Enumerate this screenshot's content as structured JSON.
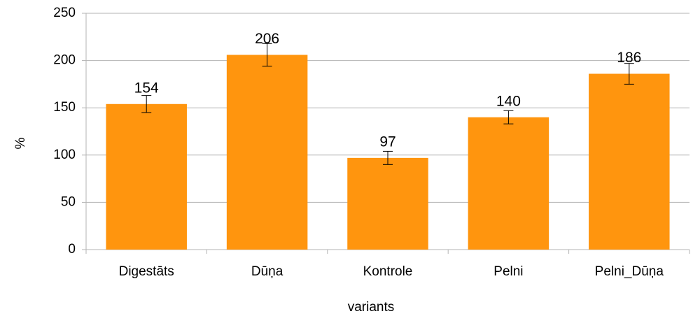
{
  "chart_data": {
    "type": "bar",
    "categories": [
      "Digestāts",
      "Dūņa",
      "Kontrole",
      "Pelni",
      "Pelni_Dūņa"
    ],
    "values": [
      154,
      206,
      97,
      140,
      186
    ],
    "errors": [
      9,
      12,
      7,
      7,
      11
    ],
    "color": "#ff950e",
    "ylim": [
      0,
      250
    ],
    "yticks": [
      0,
      50,
      100,
      150,
      200,
      250
    ],
    "grid": true,
    "xlabel": "variants",
    "ylabel": "%"
  }
}
